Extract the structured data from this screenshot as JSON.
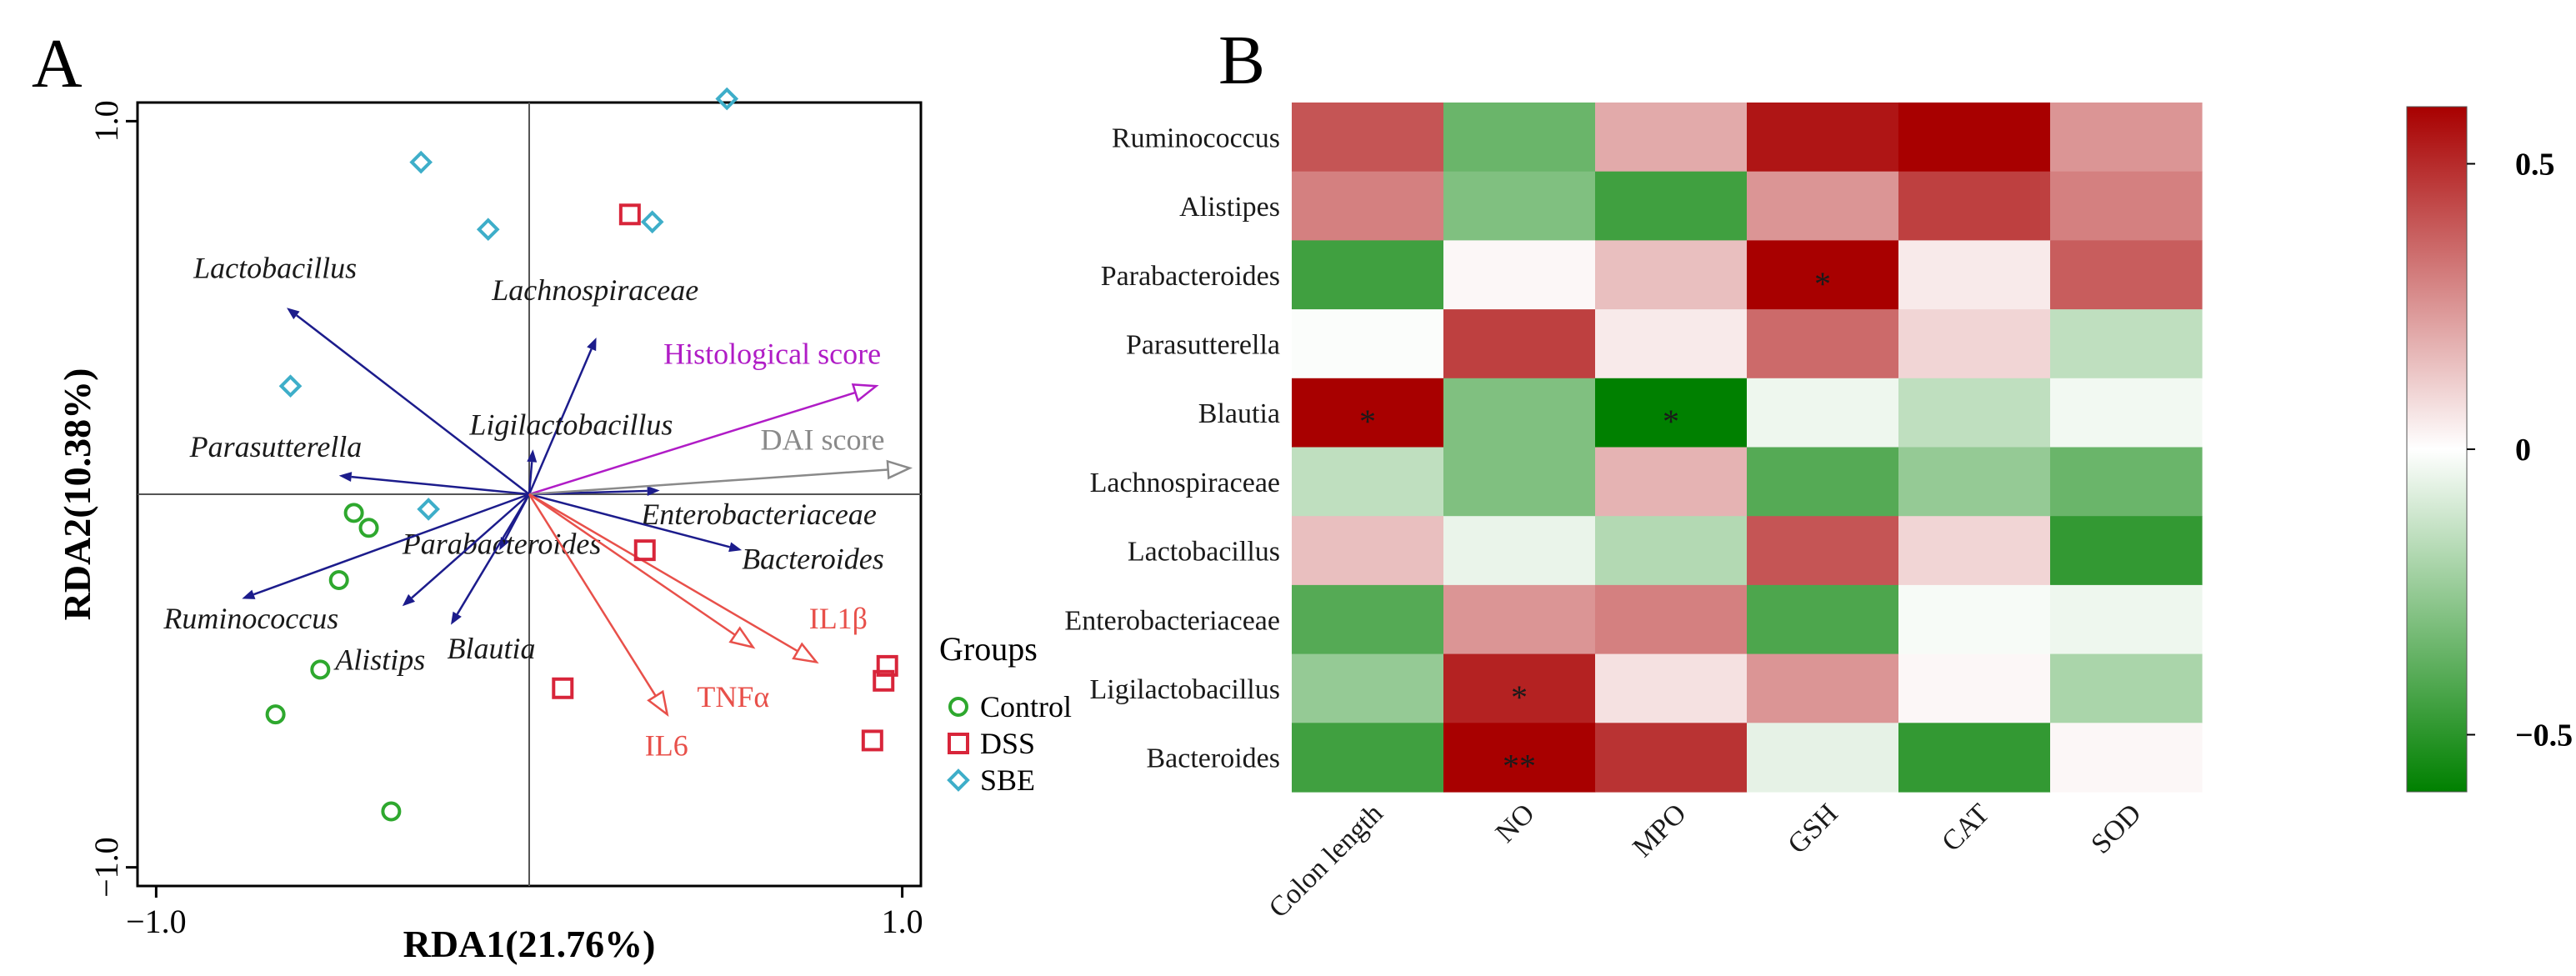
{
  "panel_a_letter": "A",
  "panel_b_letter": "B",
  "colors": {
    "species_arrow": "#1c1c8c",
    "env_red": "#e8504a",
    "histological": "#b01cc6",
    "dai": "#8a8a8a",
    "control": "#2ea82e",
    "dss": "#d8253a",
    "sbe": "#3eaec9",
    "heat_pos": "#a80000",
    "heat_mid": "#ffffff",
    "heat_neg": "#008000"
  },
  "chart_data": [
    {
      "type": "scatter",
      "subtype": "RDA biplot",
      "title": "",
      "xlabel": "RDA1(21.76%)",
      "ylabel": "RDA2(10.38%)",
      "xlim": [
        -1.05,
        1.05
      ],
      "ylim": [
        -1.05,
        1.05
      ],
      "x_ticks": [
        {
          "value": -1.0,
          "label": "−1.0"
        },
        {
          "value": 1.0,
          "label": "1.0"
        }
      ],
      "y_ticks": [
        {
          "value": 1.0,
          "label": "1.0"
        },
        {
          "value": -1.0,
          "label": "−1.0"
        }
      ],
      "species_arrows": [
        {
          "name": "Lactobacillus",
          "x": -0.65,
          "y": 0.5,
          "label_x": -0.9,
          "label_y": 0.58
        },
        {
          "name": "Lachnospiraceae",
          "x": 0.18,
          "y": 0.42,
          "label_x": -0.1,
          "label_y": 0.52
        },
        {
          "name": "Ligilactobacillus",
          "x": 0.01,
          "y": 0.12,
          "label_x": -0.16,
          "label_y": 0.16
        },
        {
          "name": "Parasutterella",
          "x": -0.51,
          "y": 0.05,
          "label_x": -0.91,
          "label_y": 0.1
        },
        {
          "name": "Enterobacteriaceae",
          "x": 0.35,
          "y": 0.01,
          "label_x": 0.3,
          "label_y": -0.08
        },
        {
          "name": "Bacteroides",
          "x": 0.57,
          "y": -0.15,
          "label_x": 0.57,
          "label_y": -0.2
        },
        {
          "name": "Parabacteroides",
          "x": -0.08,
          "y": -0.15,
          "label_x": -0.34,
          "label_y": -0.16
        },
        {
          "name": "Ruminococcus",
          "x": -0.77,
          "y": -0.28,
          "label_x": -0.98,
          "label_y": -0.36
        },
        {
          "name": "Alistips",
          "x": -0.34,
          "y": -0.3,
          "label_x": -0.52,
          "label_y": -0.47
        },
        {
          "name": "Blautia",
          "x": -0.21,
          "y": -0.35,
          "label_x": -0.22,
          "label_y": -0.44
        }
      ],
      "environment_arrows": [
        {
          "name": "Histological score",
          "x": 0.93,
          "y": 0.29,
          "label_x": 0.36,
          "label_y": 0.35,
          "color_key": "histological"
        },
        {
          "name": "DAI score",
          "x": 1.02,
          "y": 0.07,
          "label_x": 0.62,
          "label_y": 0.12,
          "color_key": "dai"
        },
        {
          "name": "IL1β",
          "x": 0.77,
          "y": -0.45,
          "label_x": 0.75,
          "label_y": -0.36,
          "color_key": "env_red"
        },
        {
          "name": "TNFα",
          "x": 0.37,
          "y": -0.59,
          "label_x": 0.45,
          "label_y": -0.57,
          "color_key": "env_red"
        },
        {
          "name": "IL6",
          "x": 0.6,
          "y": -0.41,
          "label_x": 0.31,
          "label_y": -0.7,
          "color_key": "env_red"
        }
      ],
      "groups": [
        {
          "name": "Control",
          "marker": "circle",
          "color_key": "control",
          "points": [
            [
              -0.47,
              -0.05
            ],
            [
              -0.43,
              -0.09
            ],
            [
              -0.51,
              -0.23
            ],
            [
              -0.56,
              -0.47
            ],
            [
              -0.68,
              -0.59
            ],
            [
              -0.37,
              -0.85
            ]
          ]
        },
        {
          "name": "DSS",
          "marker": "square",
          "color_key": "dss",
          "points": [
            [
              0.27,
              0.75
            ],
            [
              0.31,
              -0.15
            ],
            [
              0.09,
              -0.52
            ],
            [
              0.96,
              -0.46
            ],
            [
              0.95,
              -0.5
            ],
            [
              0.92,
              -0.66
            ]
          ]
        },
        {
          "name": "SBE",
          "marker": "diamond",
          "color_key": "sbe",
          "points": [
            [
              -0.29,
              0.89
            ],
            [
              -0.11,
              0.71
            ],
            [
              0.33,
              0.73
            ],
            [
              0.53,
              1.06
            ],
            [
              -0.64,
              0.29
            ],
            [
              -0.27,
              -0.04
            ]
          ]
        }
      ],
      "legend": {
        "title": "Groups",
        "position": "right"
      }
    },
    {
      "type": "heatmap",
      "title": "",
      "rows": [
        "Ruminococcus",
        "Alistipes",
        "Parabacteroides",
        "Parasutterella",
        "Blautia",
        "Lachnospiraceae",
        "Lactobacillus",
        "Enterobacteriaceae",
        "Ligilactobacillus",
        "Bacteroides"
      ],
      "columns": [
        "Colon length",
        "NO",
        "MPO",
        "GSH",
        "CAT",
        "SOD"
      ],
      "values": [
        [
          0.4,
          -0.35,
          0.2,
          0.55,
          0.62,
          0.25
        ],
        [
          0.3,
          -0.3,
          -0.45,
          0.25,
          0.45,
          0.3
        ],
        [
          -0.45,
          0.02,
          0.15,
          0.62,
          0.05,
          0.38
        ],
        [
          -0.01,
          0.45,
          0.05,
          0.35,
          0.1,
          -0.15
        ],
        [
          0.62,
          -0.3,
          -0.6,
          -0.04,
          -0.15,
          -0.03
        ],
        [
          -0.15,
          -0.3,
          0.18,
          -0.4,
          -0.25,
          -0.35
        ],
        [
          0.15,
          -0.05,
          -0.18,
          0.4,
          0.1,
          -0.48
        ],
        [
          -0.4,
          0.25,
          0.3,
          -0.42,
          -0.02,
          -0.04
        ],
        [
          -0.25,
          0.52,
          0.07,
          0.25,
          0.02,
          -0.2
        ],
        [
          -0.45,
          0.7,
          0.48,
          -0.06,
          -0.48,
          0.02
        ]
      ],
      "significance": [
        [
          "",
          "",
          "",
          "",
          "",
          ""
        ],
        [
          "",
          "",
          "",
          "",
          "",
          ""
        ],
        [
          "",
          "",
          "",
          "*",
          "",
          ""
        ],
        [
          "",
          "",
          "",
          "",
          "",
          ""
        ],
        [
          "*",
          "",
          "*",
          "",
          "",
          ""
        ],
        [
          "",
          "",
          "",
          "",
          "",
          ""
        ],
        [
          "",
          "",
          "",
          "",
          "",
          ""
        ],
        [
          "",
          "",
          "",
          "",
          "",
          ""
        ],
        [
          "",
          "*",
          "",
          "",
          "",
          ""
        ],
        [
          "",
          "**",
          "",
          "",
          "",
          ""
        ]
      ],
      "colorbar": {
        "min": -0.6,
        "max": 0.6,
        "ticks": [
          {
            "value": 0.5,
            "label": "0.5"
          },
          {
            "value": 0,
            "label": "0"
          },
          {
            "value": -0.5,
            "label": "−0.5"
          }
        ]
      }
    }
  ]
}
